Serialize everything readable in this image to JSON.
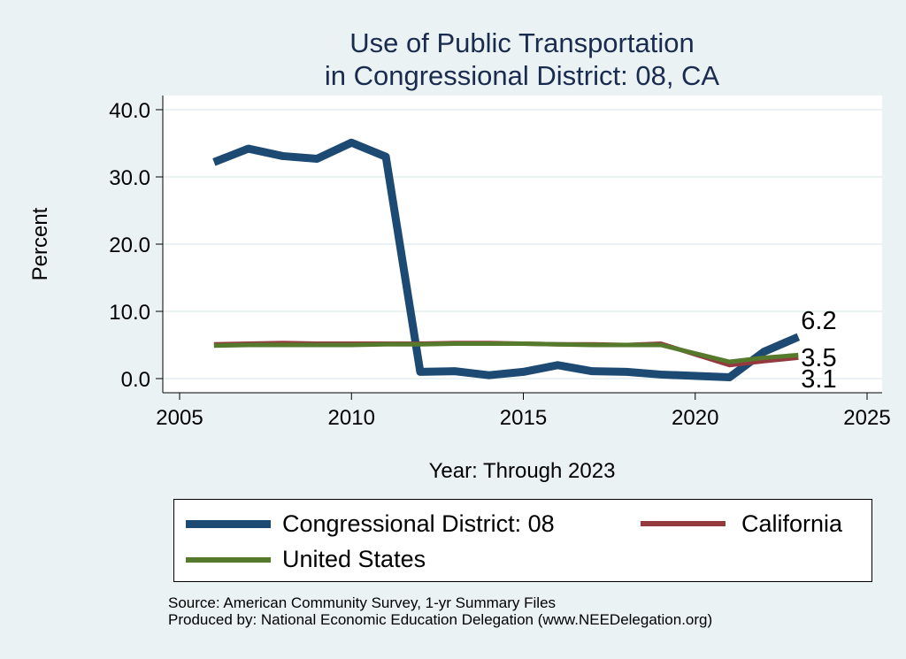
{
  "chart_data": {
    "type": "line",
    "title": "Use of Public Transportation",
    "subtitle": "in Congressional District: 08, CA",
    "xlabel": "Year: Through 2023",
    "ylabel": "Percent",
    "xlim": [
      2005,
      2025
    ],
    "ylim": [
      0,
      40
    ],
    "xticks": [
      "2005",
      "2010",
      "2015",
      "2020",
      "2025"
    ],
    "yticks": [
      "0.0",
      "10.0",
      "20.0",
      "30.0",
      "40.0"
    ],
    "grid": true,
    "legend_position": "bottom",
    "series": [
      {
        "name": "Congressional District: 08",
        "color": "#1c4a72",
        "x": [
          2006,
          2007,
          2008,
          2009,
          2010,
          2011,
          2012,
          2013,
          2014,
          2015,
          2016,
          2017,
          2018,
          2019,
          2021,
          2022,
          2023
        ],
        "values": [
          32.2,
          34.2,
          33.1,
          32.7,
          35.1,
          33.0,
          1.0,
          1.1,
          0.5,
          1.0,
          2.0,
          1.1,
          1.0,
          0.6,
          0.2,
          4.0,
          6.2
        ],
        "end_label": "6.2"
      },
      {
        "name": "California",
        "color": "#943a3f",
        "x": [
          2006,
          2007,
          2008,
          2009,
          2010,
          2011,
          2012,
          2013,
          2014,
          2015,
          2016,
          2017,
          2018,
          2019,
          2021,
          2022,
          2023
        ],
        "values": [
          5.1,
          5.2,
          5.3,
          5.2,
          5.2,
          5.2,
          5.2,
          5.3,
          5.3,
          5.2,
          5.1,
          5.1,
          5.0,
          5.2,
          2.0,
          2.6,
          3.1
        ],
        "end_label": "3.1"
      },
      {
        "name": "United States",
        "color": "#557a2c",
        "x": [
          2006,
          2007,
          2008,
          2009,
          2010,
          2011,
          2012,
          2013,
          2014,
          2015,
          2016,
          2017,
          2018,
          2019,
          2021,
          2022,
          2023
        ],
        "values": [
          4.9,
          5.0,
          5.0,
          5.0,
          5.0,
          5.1,
          5.1,
          5.2,
          5.2,
          5.2,
          5.1,
          5.0,
          5.0,
          5.0,
          2.5,
          3.1,
          3.5
        ],
        "end_label": "3.5"
      }
    ]
  },
  "source": {
    "line1": "Source: American Community Survey, 1-yr Summary Files",
    "line2": "Produced by: National Economic Education Delegation (www.NEEDelegation.org)"
  }
}
